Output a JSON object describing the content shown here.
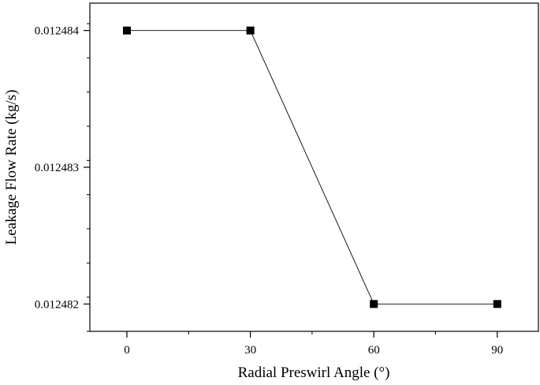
{
  "chart_data": {
    "type": "line",
    "title": "",
    "xlabel": "Radial Preswirl Angle (°)",
    "ylabel": "Leakage Flow Rate (kg/s)",
    "x": [
      0,
      30,
      60,
      90
    ],
    "series": [
      {
        "values": [
          0.012484,
          0.012484,
          0.012482,
          0.012482
        ]
      }
    ],
    "xticks": [
      0,
      30,
      60,
      90
    ],
    "xtick_labels": [
      "0",
      "30",
      "60",
      "90"
    ],
    "yticks": [
      0.012482,
      0.012483,
      0.012484
    ],
    "ytick_labels": [
      "0.012482",
      "0.012483",
      "0.012484"
    ],
    "xlim": [
      -9,
      100
    ],
    "ylim": [
      0.0124818,
      0.0124842
    ],
    "grid": false,
    "marker": "square",
    "colors": {
      "line": "#000000",
      "marker": "#000000",
      "axis": "#000000"
    }
  }
}
